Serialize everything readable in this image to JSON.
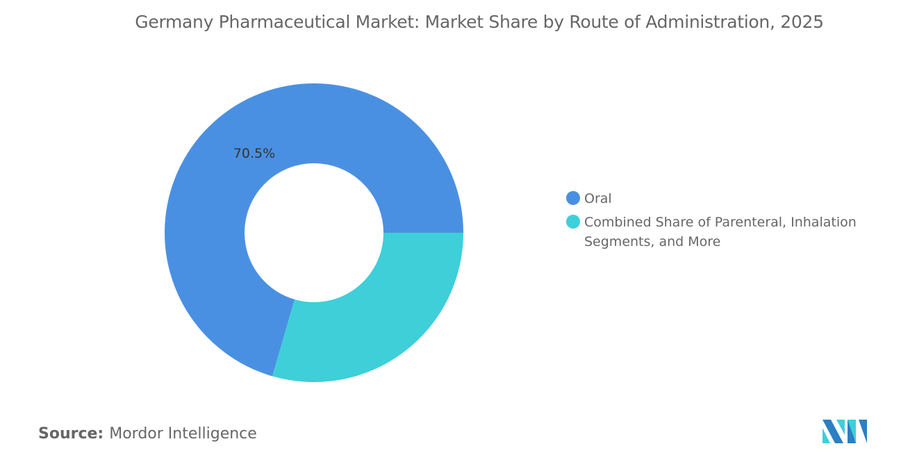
{
  "chart_data": {
    "type": "pie",
    "variant": "donut",
    "title": "Germany Pharmaceutical Market: Market Share by Route of Administration, 2025",
    "categories": [
      "Oral",
      "Combined Share of Parenteral, Inhalation Segments, and More"
    ],
    "values": [
      70.5,
      29.5
    ],
    "data_labels": [
      "70.5%",
      ""
    ],
    "colors": [
      "#4a90e2",
      "#3ecfd9"
    ],
    "legend_position": "right"
  },
  "source": {
    "label": "Source:",
    "value": "Mordor Intelligence"
  },
  "logo": {
    "name": "Mordor Intelligence logo"
  }
}
